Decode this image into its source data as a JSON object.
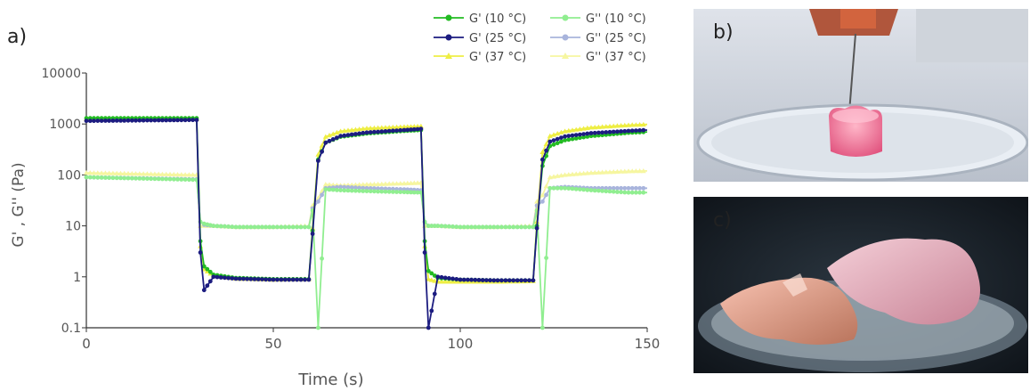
{
  "chart_data": {
    "type": "line",
    "panel_label": "a)",
    "xlabel": "Time (s)",
    "ylabel": "G' , G'' (Pa)",
    "xlim": [
      0,
      150
    ],
    "ylim": [
      0.1,
      10000
    ],
    "y_scale": "log",
    "xticks": [
      0,
      50,
      100,
      150
    ],
    "xtick_labels": [
      "0",
      "50",
      "100",
      "150"
    ],
    "yticks": [
      0.1,
      1,
      10,
      100,
      1000,
      10000
    ],
    "ytick_labels": [
      "0.1",
      "1",
      "10",
      "100",
      "1000",
      "10000"
    ],
    "grid": false,
    "legend_position": "top-right",
    "x": [
      0,
      29.5,
      30.5,
      31.5,
      34,
      40,
      50,
      59.5,
      60.5,
      62,
      64,
      68,
      75,
      85,
      89.5,
      90.5,
      91.5,
      94,
      100,
      110,
      119.5,
      120.5,
      122,
      124,
      128,
      135,
      145,
      150
    ],
    "series": [
      {
        "name": "G' (10 °C)",
        "color": "#22bb22",
        "marker": "circle",
        "values": [
          1300,
          1300,
          5,
          1.6,
          1.1,
          0.95,
          0.9,
          0.9,
          8,
          200,
          430,
          560,
          650,
          730,
          760,
          5,
          1.3,
          0.95,
          0.88,
          0.85,
          0.85,
          10,
          150,
          370,
          480,
          580,
          670,
          700
        ]
      },
      {
        "name": "G' (25 °C)",
        "color": "#1c1c80",
        "marker": "circle",
        "values": [
          1150,
          1200,
          3,
          0.55,
          1.0,
          0.92,
          0.88,
          0.88,
          7,
          190,
          430,
          580,
          680,
          760,
          800,
          3,
          0.1,
          1.0,
          0.88,
          0.85,
          0.85,
          9,
          200,
          450,
          570,
          660,
          730,
          760
        ]
      },
      {
        "name": "G' (37 °C)",
        "color": "#eeee44",
        "marker": "triangle",
        "values": [
          1250,
          1250,
          4,
          1.4,
          1.05,
          0.92,
          0.88,
          0.9,
          9,
          250,
          560,
          720,
          820,
          880,
          900,
          4,
          0.9,
          0.8,
          0.8,
          0.8,
          0.82,
          12,
          280,
          580,
          720,
          850,
          950,
          980
        ]
      },
      {
        "name": "G'' (10 °C)",
        "color": "#90ee90",
        "marker": "circle",
        "values": [
          90,
          80,
          12,
          11,
          10,
          9.5,
          9.5,
          9.5,
          20,
          0.1,
          52,
          50,
          48,
          46,
          45,
          12,
          10,
          10,
          9.5,
          9.5,
          9.5,
          20,
          0.1,
          55,
          55,
          50,
          45,
          45
        ]
      },
      {
        "name": "G'' (25 °C)",
        "color": "#a8b4dc",
        "marker": "circle",
        "values": [
          90,
          82,
          12,
          10.5,
          10,
          9.5,
          9.5,
          9.5,
          22,
          30,
          55,
          58,
          55,
          52,
          50,
          12,
          10,
          10,
          9.5,
          9.5,
          9.5,
          25,
          30,
          55,
          58,
          55,
          55,
          55
        ]
      },
      {
        "name": "G'' (37 °C)",
        "color": "#f6f6a0",
        "marker": "triangle",
        "values": [
          110,
          100,
          10,
          10,
          10,
          9.5,
          9.5,
          10,
          25,
          35,
          65,
          62,
          65,
          68,
          70,
          10,
          10,
          10,
          9.5,
          9.5,
          10,
          30,
          40,
          90,
          100,
          110,
          118,
          120
        ]
      }
    ]
  },
  "panels": {
    "b": {
      "label": "b)"
    },
    "c": {
      "label": "c)"
    }
  }
}
